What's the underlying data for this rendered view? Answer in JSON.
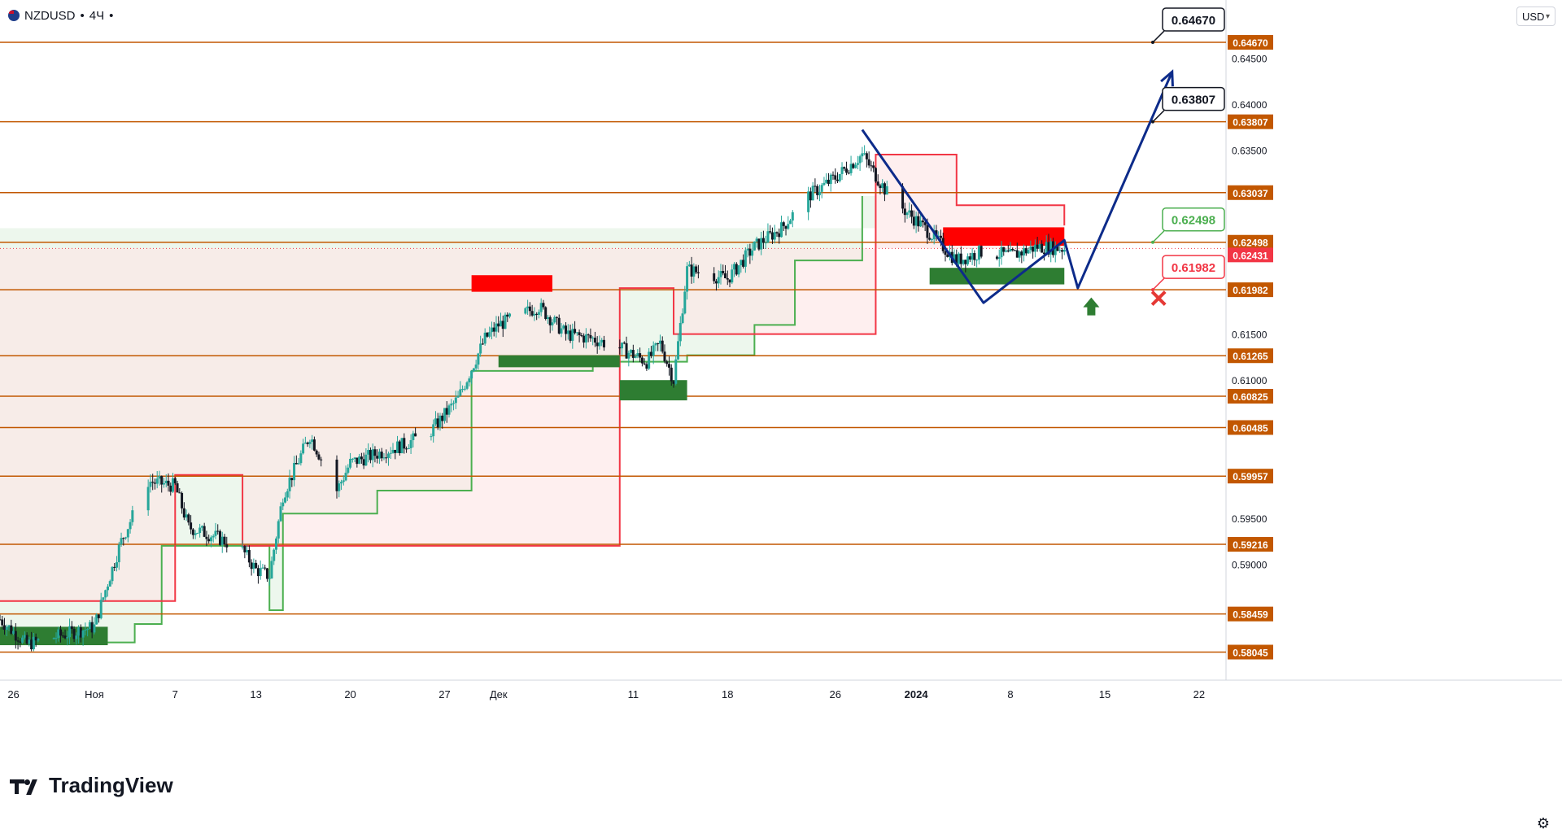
{
  "header": {
    "symbol": "NZDUSD",
    "separator1": "•",
    "timeframe": "4Ч",
    "separator2": "•"
  },
  "toolbar": {
    "currency": "USD"
  },
  "watermark": {
    "text": "TradingView"
  },
  "colors": {
    "up_candle": "#26a69a",
    "down_candle": "#131722",
    "level_line": "#c25700",
    "supertrend_up": "#4caf50",
    "supertrend_down": "#f23645",
    "fill_up": "#e8f5e9",
    "fill_down": "#fde4e4",
    "zone_red": "#ff0000",
    "zone_green": "#2e7d32",
    "forecast": "#0d2b8a",
    "arrow_up": "#2e7d32",
    "cross": "#e53935"
  },
  "chart_data": {
    "type": "candlestick",
    "title": "NZDUSD • 4Ч •",
    "yaxis": {
      "min": 0.5774,
      "max": 0.6513,
      "side": "right",
      "currency": "USD"
    },
    "xaxis": {
      "tick_labels": [
        "26",
        "Ноя",
        "7",
        "13",
        "20",
        "27",
        "Дек",
        "11",
        "18",
        "26",
        "2024",
        "8",
        "15",
        "22"
      ],
      "tick_dates": [
        "2023-10-26",
        "2023-11-01",
        "2023-11-07",
        "2023-11-13",
        "2023-11-20",
        "2023-11-27",
        "2023-12-01",
        "2023-12-11",
        "2023-12-18",
        "2023-12-26",
        "2024-01-01",
        "2024-01-08",
        "2024-01-15",
        "2024-01-22"
      ],
      "bold_labels": [
        "2024"
      ],
      "date_range": [
        "2023-10-25",
        "2024-01-24"
      ]
    },
    "price_axis_ticks": [
      "0.64500",
      "0.64000",
      "0.63500",
      "0.61500",
      "0.61000",
      "0.59500",
      "0.59000"
    ],
    "levels": [
      {
        "price": 0.6467,
        "label": "0.64670"
      },
      {
        "price": 0.63807,
        "label": "0.63807"
      },
      {
        "price": 0.63037,
        "label": "0.63037"
      },
      {
        "price": 0.62498,
        "label": "0.62498"
      },
      {
        "price": 0.61982,
        "label": "0.61982"
      },
      {
        "price": 0.61265,
        "label": "0.61265"
      },
      {
        "price": 0.60825,
        "label": "0.60825"
      },
      {
        "price": 0.60485,
        "label": "0.60485"
      },
      {
        "price": 0.59957,
        "label": "0.59957"
      },
      {
        "price": 0.59216,
        "label": "0.59216"
      },
      {
        "price": 0.58459,
        "label": "0.58459"
      },
      {
        "price": 0.58045,
        "label": "0.58045"
      }
    ],
    "current_price": {
      "price": 0.62431,
      "label": "0.62431"
    },
    "candle_anchors": [
      [
        "2023-10-25",
        0.584
      ],
      [
        "2023-10-27",
        0.5813
      ],
      [
        "2023-11-01",
        0.5832
      ],
      [
        "2023-11-02",
        0.588
      ],
      [
        "2023-11-03",
        0.5925
      ],
      [
        "2023-11-05",
        0.599
      ],
      [
        "2023-11-07",
        0.5985
      ],
      [
        "2023-11-08",
        0.594
      ],
      [
        "2023-11-10",
        0.593
      ],
      [
        "2023-11-12",
        0.5915
      ],
      [
        "2023-11-13",
        0.5894
      ],
      [
        "2023-11-14",
        0.5887
      ],
      [
        "2023-11-15",
        0.5975
      ],
      [
        "2023-11-17",
        0.604
      ],
      [
        "2023-11-19",
        0.598
      ],
      [
        "2023-11-20",
        0.601
      ],
      [
        "2023-11-22",
        0.602
      ],
      [
        "2023-11-24",
        0.603
      ],
      [
        "2023-11-26",
        0.6045
      ],
      [
        "2023-11-28",
        0.608
      ],
      [
        "2023-11-30",
        0.6145
      ],
      [
        "2023-12-01",
        0.616
      ],
      [
        "2023-12-04",
        0.618
      ],
      [
        "2023-12-06",
        0.615
      ],
      [
        "2023-12-08",
        0.6145
      ],
      [
        "2023-12-10",
        0.6135
      ],
      [
        "2023-12-12",
        0.612
      ],
      [
        "2023-12-13",
        0.614
      ],
      [
        "2023-12-14",
        0.61
      ],
      [
        "2023-12-15",
        0.622
      ],
      [
        "2023-12-18",
        0.621
      ],
      [
        "2023-12-20",
        0.6245
      ],
      [
        "2023-12-22",
        0.6265
      ],
      [
        "2023-12-24",
        0.63
      ],
      [
        "2023-12-26",
        0.632
      ],
      [
        "2023-12-28",
        0.6345
      ],
      [
        "2023-12-30",
        0.63
      ],
      [
        "2024-01-02",
        0.626
      ],
      [
        "2024-01-04",
        0.623
      ],
      [
        "2024-01-06",
        0.624
      ],
      [
        "2024-01-08",
        0.6235
      ],
      [
        "2024-01-10",
        0.6245
      ],
      [
        "2024-01-12",
        0.6243
      ]
    ],
    "supertrend": {
      "up": [
        [
          "2023-10-25",
          0.5815
        ],
        [
          "2023-11-04",
          0.5835
        ],
        [
          "2023-11-06",
          0.592
        ],
        [
          "2023-11-14",
          0.585
        ],
        [
          "2023-11-15",
          0.5955
        ],
        [
          "2023-11-22",
          0.598
        ],
        [
          "2023-11-29",
          0.611
        ],
        [
          "2023-12-08",
          0.612
        ],
        [
          "2023-12-15",
          0.6127
        ],
        [
          "2023-12-20",
          0.616
        ],
        [
          "2023-12-23",
          0.623
        ],
        [
          "2023-12-28",
          0.63
        ]
      ],
      "down": [
        [
          "2023-10-25",
          0.586
        ],
        [
          "2023-11-07",
          0.5997
        ],
        [
          "2023-11-12",
          0.592
        ],
        [
          "2023-12-10",
          0.62
        ],
        [
          "2023-12-14",
          0.615
        ],
        [
          "2023-12-29",
          0.6345
        ],
        [
          "2024-01-04",
          0.629
        ],
        [
          "2024-01-12",
          0.6268
        ]
      ]
    },
    "zones": [
      {
        "type": "supply",
        "start": "2023-11-29",
        "end": "2023-12-05",
        "top": 0.6214,
        "bottom": 0.6196
      },
      {
        "type": "demand",
        "start": "2023-12-01",
        "end": "2023-12-10",
        "top": 0.6127,
        "bottom": 0.6114
      },
      {
        "type": "demand",
        "start": "2023-12-10",
        "end": "2023-12-15",
        "top": 0.61,
        "bottom": 0.6078
      },
      {
        "type": "supply",
        "start": "2024-01-03",
        "end": "2024-01-12",
        "top": 0.6266,
        "bottom": 0.6246
      },
      {
        "type": "demand",
        "start": "2024-01-02",
        "end": "2024-01-12",
        "top": 0.6222,
        "bottom": 0.6204
      },
      {
        "type": "demand",
        "start": "2023-10-25",
        "end": "2023-11-02",
        "top": 0.5832,
        "bottom": 0.5812
      }
    ],
    "forecast_path": [
      [
        "2023-12-28",
        0.6372
      ],
      [
        "2024-01-06",
        0.6184
      ],
      [
        "2024-01-12",
        0.6252
      ],
      [
        "2024-01-13",
        0.62
      ],
      [
        "2024-01-20",
        0.6435
      ]
    ],
    "annotations": [
      {
        "label": "0.64670",
        "price": 0.6467,
        "style": "neutral"
      },
      {
        "label": "0.63807",
        "price": 0.63807,
        "style": "neutral"
      },
      {
        "label": "0.62498",
        "price": 0.62498,
        "style": "target-green"
      },
      {
        "label": "0.61982",
        "price": 0.61982,
        "style": "stop-red"
      }
    ]
  }
}
